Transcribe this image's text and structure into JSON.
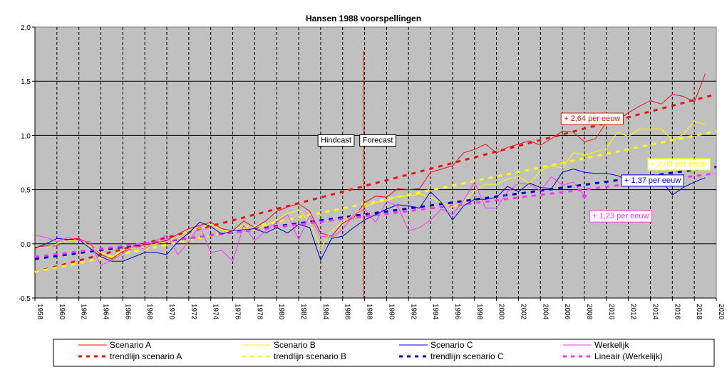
{
  "chart_data": {
    "type": "line",
    "title": "Hansen 1988 voorspellingen",
    "xlabel": "",
    "ylabel": "",
    "xlim": [
      1958,
      2020
    ],
    "ylim": [
      -0.5,
      2.0
    ],
    "x_ticks": [
      "1958",
      "1960",
      "1962",
      "1964",
      "1966",
      "1968",
      "1970",
      "1972",
      "1974",
      "1976",
      "1978",
      "1980",
      "1982",
      "1984",
      "1986",
      "1988",
      "1990",
      "1992",
      "1994",
      "1996",
      "1998",
      "2000",
      "2002",
      "2004",
      "2006",
      "2008",
      "2010",
      "2012",
      "2014",
      "2016",
      "2018",
      "2020"
    ],
    "y_ticks": [
      "-0,5",
      "0,0",
      "0,5",
      "1,0",
      "1,5",
      "2,0"
    ],
    "y_tick_values": [
      -0.5,
      0.0,
      0.5,
      1.0,
      1.5,
      2.0
    ],
    "grid": "horizontal solid, vertical dashed",
    "plot_background": "#c0c0c0",
    "series": [
      {
        "name": "Scenario A",
        "color": "#ee1111",
        "x": [
          1958,
          1959,
          1960,
          1961,
          1962,
          1963,
          1964,
          1965,
          1966,
          1967,
          1968,
          1969,
          1970,
          1971,
          1972,
          1973,
          1974,
          1975,
          1976,
          1977,
          1978,
          1979,
          1980,
          1981,
          1982,
          1983,
          1984,
          1985,
          1986,
          1987,
          1988,
          1989,
          1990,
          1991,
          1992,
          1993,
          1994,
          1995,
          1996,
          1997,
          1998,
          1999,
          2000,
          2001,
          2002,
          2003,
          2004,
          2005,
          2006,
          2007,
          2008,
          2009,
          2010,
          2011,
          2012,
          2013,
          2014,
          2015,
          2016,
          2017,
          2018,
          2019
        ],
        "values": [
          -0.03,
          -0.02,
          -0.02,
          0.04,
          0.05,
          0.0,
          -0.1,
          -0.14,
          -0.07,
          -0.04,
          -0.01,
          0.01,
          0.03,
          0.09,
          0.14,
          0.17,
          0.2,
          0.14,
          0.12,
          0.21,
          0.15,
          0.21,
          0.3,
          0.34,
          0.37,
          0.3,
          0.1,
          0.07,
          0.19,
          0.24,
          0.38,
          0.44,
          0.43,
          0.51,
          0.5,
          0.51,
          0.66,
          0.69,
          0.72,
          0.84,
          0.87,
          0.92,
          0.84,
          0.89,
          0.92,
          0.95,
          0.91,
          0.97,
          1.04,
          1.03,
          0.94,
          0.97,
          1.12,
          1.13,
          1.21,
          1.27,
          1.32,
          1.29,
          1.38,
          1.36,
          1.31,
          1.57
        ]
      },
      {
        "name": "Scenario B",
        "color": "#ffff00",
        "x": [
          1958,
          1959,
          1960,
          1961,
          1962,
          1963,
          1964,
          1965,
          1966,
          1967,
          1968,
          1969,
          1970,
          1971,
          1972,
          1973,
          1974,
          1975,
          1976,
          1977,
          1978,
          1979,
          1980,
          1981,
          1982,
          1983,
          1984,
          1985,
          1986,
          1987,
          1988,
          1989,
          1990,
          1991,
          1992,
          1993,
          1994,
          1995,
          1996,
          1997,
          1998,
          1999,
          2000,
          2001,
          2002,
          2003,
          2004,
          2005,
          2006,
          2007,
          2008,
          2009,
          2010,
          2011,
          2012,
          2013,
          2014,
          2015,
          2016,
          2017,
          2018,
          2019
        ],
        "values": [
          -0.02,
          -0.04,
          0.0,
          0.03,
          0.03,
          -0.02,
          -0.08,
          -0.12,
          -0.06,
          -0.04,
          -0.03,
          0.0,
          0.02,
          0.06,
          0.12,
          0.14,
          0.18,
          0.13,
          0.11,
          0.18,
          0.12,
          0.17,
          0.22,
          0.28,
          0.31,
          0.2,
          -0.04,
          0.12,
          0.2,
          0.27,
          0.34,
          0.38,
          0.4,
          0.44,
          0.44,
          0.46,
          0.43,
          0.38,
          0.34,
          0.39,
          0.49,
          0.55,
          0.55,
          0.6,
          0.62,
          0.56,
          0.67,
          0.72,
          0.7,
          0.84,
          0.82,
          0.85,
          0.88,
          1.03,
          0.99,
          1.06,
          1.06,
          1.06,
          0.96,
          1.01,
          1.13,
          1.1
        ]
      },
      {
        "name": "Scenario C",
        "color": "#0000cc",
        "x": [
          1958,
          1959,
          1960,
          1961,
          1962,
          1963,
          1964,
          1965,
          1966,
          1967,
          1968,
          1969,
          1970,
          1971,
          1972,
          1973,
          1974,
          1975,
          1976,
          1977,
          1978,
          1979,
          1980,
          1981,
          1982,
          1983,
          1984,
          1985,
          1986,
          1987,
          1988,
          1989,
          1990,
          1991,
          1992,
          1993,
          1994,
          1995,
          1996,
          1997,
          1998,
          1999,
          2000,
          2001,
          2002,
          2003,
          2004,
          2005,
          2006,
          2007,
          2008,
          2009,
          2010,
          2011,
          2012,
          2013,
          2014,
          2015,
          2016,
          2017,
          2018,
          2019
        ],
        "values": [
          -0.04,
          0.0,
          0.05,
          0.04,
          0.04,
          -0.04,
          -0.12,
          -0.16,
          -0.16,
          -0.12,
          -0.08,
          -0.08,
          -0.1,
          0.02,
          0.1,
          0.2,
          0.16,
          0.09,
          0.12,
          0.13,
          0.14,
          0.1,
          0.15,
          0.1,
          0.18,
          0.15,
          -0.15,
          0.05,
          0.07,
          0.15,
          0.22,
          0.27,
          0.32,
          0.36,
          0.35,
          0.33,
          0.48,
          0.38,
          0.22,
          0.35,
          0.41,
          0.41,
          0.43,
          0.53,
          0.48,
          0.56,
          0.52,
          0.51,
          0.66,
          0.69,
          0.66,
          0.65,
          0.65,
          0.63,
          0.58,
          0.6,
          0.57,
          0.59,
          0.45,
          0.52,
          0.57,
          0.61
        ]
      },
      {
        "name": "Werkelijk",
        "color": "#ff33ff",
        "x": [
          1958,
          1959,
          1960,
          1961,
          1962,
          1963,
          1964,
          1965,
          1966,
          1967,
          1968,
          1969,
          1970,
          1971,
          1972,
          1973,
          1974,
          1975,
          1976,
          1977,
          1978,
          1979,
          1980,
          1981,
          1982,
          1983,
          1984,
          1985,
          1986,
          1987,
          1988,
          1989,
          1990,
          1991,
          1992,
          1993,
          1994,
          1995,
          1996,
          1997,
          1998,
          1999,
          2000,
          2001,
          2002,
          2003,
          2004,
          2005,
          2006,
          2007,
          2008
        ],
        "values": [
          0.08,
          0.06,
          0.02,
          0.06,
          0.03,
          0.02,
          -0.2,
          -0.15,
          -0.09,
          -0.02,
          -0.05,
          0.03,
          0.08,
          -0.1,
          0.02,
          0.17,
          -0.08,
          -0.06,
          -0.16,
          0.17,
          0.03,
          0.12,
          0.2,
          0.27,
          0.04,
          0.26,
          0.07,
          0.06,
          0.13,
          0.27,
          0.32,
          0.2,
          0.39,
          0.35,
          0.12,
          0.15,
          0.22,
          0.32,
          0.27,
          0.4,
          0.57,
          0.33,
          0.33,
          0.48,
          0.56,
          0.55,
          0.49,
          0.62,
          0.54,
          0.57,
          0.44
        ]
      },
      {
        "name": "trendlijn scenario A",
        "color": "#ee1111",
        "dashed": true,
        "x": [
          1958,
          2020
        ],
        "values": [
          -0.26,
          1.38
        ]
      },
      {
        "name": "trendlijn scenario B",
        "color": "#ffff00",
        "dashed": true,
        "x": [
          1958,
          2020
        ],
        "values": [
          -0.26,
          1.04
        ]
      },
      {
        "name": "trendlijn scenario C",
        "color": "#0000cc",
        "dashed": true,
        "x": [
          1958,
          2020
        ],
        "values": [
          -0.14,
          0.71
        ]
      },
      {
        "name": "Lineair (Werkelijk)",
        "color": "#ff33ff",
        "dashed": true,
        "x": [
          1958,
          2020
        ],
        "values": [
          -0.12,
          0.65
        ]
      }
    ],
    "annotations": [
      {
        "text": "Hindcast",
        "x": 1985.4,
        "y": 0.96,
        "box_color": "#000000",
        "text_color": "#000000"
      },
      {
        "text": "Forecast",
        "x": 1989.2,
        "y": 0.96,
        "box_color": "#000000",
        "text_color": "#000000"
      },
      {
        "text": "+ 2,64 per eeuw",
        "x": 2008.7,
        "y": 1.16,
        "box_color": "#ee1111",
        "text_color": "#ee1111"
      },
      {
        "text": "+ 2,09 per eeuw",
        "x": 2016.6,
        "y": 0.74,
        "box_color": "#ffff00",
        "text_color": "#ffff00"
      },
      {
        "text": "+ 1,37 per eeuw",
        "x": 2014.2,
        "y": 0.59,
        "box_color": "#0000cc",
        "text_color": "#0000cc"
      },
      {
        "text": "+ 1,23 per eeuw",
        "x": 2011.3,
        "y": 0.26,
        "box_color": "#ff33ff",
        "text_color": "#ff33ff"
      }
    ],
    "marker": {
      "x": 2008,
      "y": 0.44,
      "color": "#ff33ff"
    },
    "vertical_line": {
      "x": 1987.9,
      "y_top": 1.78,
      "y_bottom": -0.5,
      "color": "#cc2200"
    },
    "legend": {
      "placement": "bottom",
      "entries": [
        {
          "label": "Scenario A",
          "series": 0
        },
        {
          "label": "Scenario B",
          "series": 1
        },
        {
          "label": "Scenario C",
          "series": 2
        },
        {
          "label": "Werkelijk",
          "series": 3
        },
        {
          "label": "trendlijn scenario A",
          "series": 4
        },
        {
          "label": "trendlijn scenario B",
          "series": 5
        },
        {
          "label": "trendlijn scenario C",
          "series": 6
        },
        {
          "label": "Lineair (Werkelijk)",
          "series": 7
        }
      ]
    }
  }
}
